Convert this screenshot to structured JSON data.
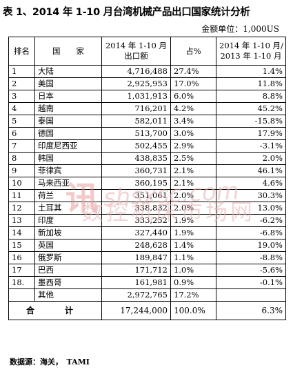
{
  "title": "表 1、2014 年 1-10 月台湾机械产品出口国家统计分析",
  "unit_label": "金额单位：1,000US",
  "headers": {
    "rank": "排名",
    "country": "国　　家",
    "amount_line1": "2014 年 1-10 月",
    "amount_line2": "出口额",
    "share": "占%",
    "yoy_line1": "2014 年 1-10 月/",
    "yoy_line2": "2013 年 1-10 月"
  },
  "rows": [
    {
      "rank": "1",
      "country": "大陆",
      "amount": "4,716,488",
      "share": "27.4%",
      "yoy": "1.4%"
    },
    {
      "rank": "2",
      "country": "美国",
      "amount": "2,925,953",
      "share": "17.0%",
      "yoy": "11.8%"
    },
    {
      "rank": "3",
      "country": "日本",
      "amount": "1,031,913",
      "share": "6.0%",
      "yoy": "8.8%"
    },
    {
      "rank": "4",
      "country": "越南",
      "amount": "716,201",
      "share": "4.2%",
      "yoy": "45.2%"
    },
    {
      "rank": "5",
      "country": "泰国",
      "amount": "582,011",
      "share": "3.4%",
      "yoy": "-15.8%"
    },
    {
      "rank": "6",
      "country": "德国",
      "amount": "513,700",
      "share": "3.0%",
      "yoy": "17.9%"
    },
    {
      "rank": "7",
      "country": "印度尼西亚",
      "amount": "502,455",
      "share": "2.9%",
      "yoy": "-3.1%"
    },
    {
      "rank": "8",
      "country": "韩国",
      "amount": "438,835",
      "share": "2.5%",
      "yoy": "2.0%"
    },
    {
      "rank": "9",
      "country": "菲律宾",
      "amount": "360,731",
      "share": "2.1%",
      "yoy": "46.1%"
    },
    {
      "rank": "10",
      "country": "马来西亚",
      "amount": "360,195",
      "share": "2.1%",
      "yoy": "4.6%"
    },
    {
      "rank": "11",
      "country": "荷兰",
      "amount": "351,061",
      "share": "2.0%",
      "yoy": "30.3%"
    },
    {
      "rank": "12",
      "country": "土耳其",
      "amount": "338,832",
      "share": "2.0%",
      "yoy": "13.0%"
    },
    {
      "rank": "13",
      "country": "印度",
      "amount": "333,252",
      "share": "1.9%",
      "yoy": "-6.2%"
    },
    {
      "rank": "14",
      "country": "新加坡",
      "amount": "327,440",
      "share": "1.9%",
      "yoy": "-6.8%"
    },
    {
      "rank": "15",
      "country": "英国",
      "amount": "248,628",
      "share": "1.4%",
      "yoy": "19.0%"
    },
    {
      "rank": "16",
      "country": "俄罗斯",
      "amount": "189,847",
      "share": "1.1%",
      "yoy": "-8.8%"
    },
    {
      "rank": "17",
      "country": "巴西",
      "amount": "171,712",
      "share": "1.0%",
      "yoy": "-5.6%"
    },
    {
      "rank": "18.",
      "country": "墨西哥",
      "amount": "161,981",
      "share": "0.9%",
      "yoy": "-0.1%"
    },
    {
      "rank": "",
      "country": "其他",
      "amount": "2,972,765",
      "share": "17.2%",
      "yoy": ""
    }
  ],
  "total": {
    "label": "合　计",
    "amount": "17,244,000",
    "share": "100.0%",
    "yoy": "6.3%"
  },
  "source": "数据源：海关，　TAMI",
  "watermark": {
    "logo": "讯",
    "url": "shsxsc.com",
    "text": "数控机床市场网"
  }
}
